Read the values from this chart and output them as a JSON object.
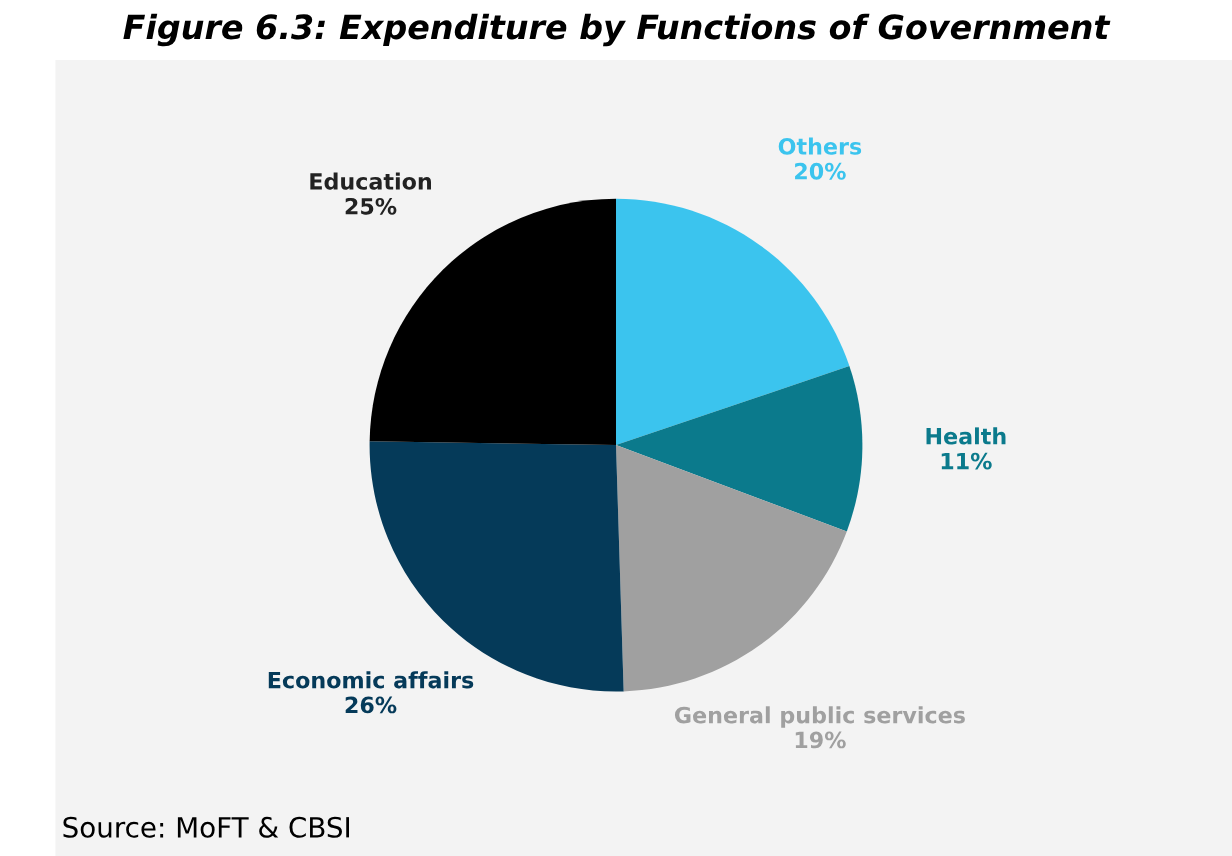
{
  "chart_data": {
    "type": "pie",
    "title": "Figure 6.3: Expenditure by Functions of Government",
    "categories": [
      "Others",
      "Health",
      "General public services",
      "Economic affairs",
      "Education"
    ],
    "values": [
      20,
      11,
      19,
      26,
      25
    ],
    "value_labels": [
      "20%",
      "11%",
      "19%",
      "26%",
      "25%"
    ],
    "colors": [
      "#3bc4ee",
      "#0b7a8c",
      "#a0a0a0",
      "#053a59",
      "#000000"
    ],
    "legend": false,
    "annotations": [
      "Source: MoFT & CBSI"
    ]
  }
}
